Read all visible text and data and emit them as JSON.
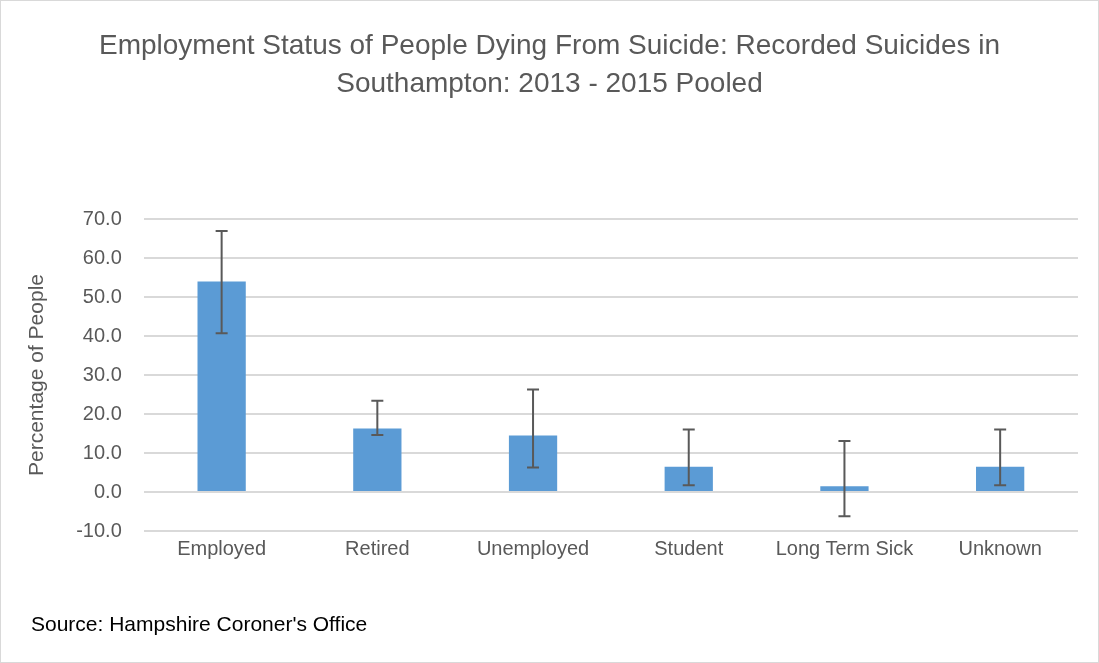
{
  "chart_data": {
    "type": "bar",
    "title": "Employment Status of People Dying From Suicide: Recorded Suicides in Southampton: 2013 - 2015 Pooled",
    "ylabel": "Percentage of People",
    "categories": [
      "Employed",
      "Retired",
      "Unemployed",
      "Student",
      "Long Term Sick",
      "Unknown"
    ],
    "values": [
      54.0,
      16.3,
      14.5,
      6.5,
      1.5,
      6.5
    ],
    "errors": [
      [
        40.7,
        66.9
      ],
      [
        14.6,
        23.4
      ],
      [
        6.3,
        26.3
      ],
      [
        1.7,
        16.0
      ],
      [
        -6.2,
        13.1
      ],
      [
        1.7,
        16.0
      ]
    ],
    "color": "#5b9bd5",
    "ylim": [
      -10,
      70
    ],
    "yticks": [
      {
        "value": -10,
        "label": "-10.0"
      },
      {
        "value": 0,
        "label": "0.0"
      },
      {
        "value": 10,
        "label": "10.0"
      },
      {
        "value": 20,
        "label": "20.0"
      },
      {
        "value": 30,
        "label": "30.0"
      },
      {
        "value": 40,
        "label": "40.0"
      },
      {
        "value": 50,
        "label": "50.0"
      },
      {
        "value": 60,
        "label": "60.0"
      },
      {
        "value": 70,
        "label": "70.0"
      }
    ],
    "grid": "y",
    "annotations": [
      "Source: Hampshire Coroner's Office"
    ]
  }
}
